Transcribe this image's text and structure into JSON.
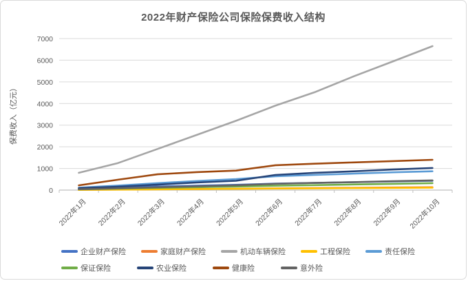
{
  "frame": {
    "title": "2022年财产保险公司保险保费收入结构"
  },
  "chart_data": {
    "type": "line",
    "title": "2022年财产保险公司保险保费收入结构",
    "xlabel": "",
    "ylabel": "保费收入（亿元）",
    "ylim": [
      0,
      7000
    ],
    "ytick_step": 1000,
    "yticks": [
      0,
      1000,
      2000,
      3000,
      4000,
      5000,
      6000,
      7000
    ],
    "grid": true,
    "legend_position": "bottom",
    "legend_rows": [
      [
        0,
        1,
        2,
        3,
        4
      ],
      [
        5,
        6,
        7,
        8
      ]
    ],
    "categories": [
      "2022年1月",
      "2022年2月",
      "2022年3月",
      "2022年4月",
      "2022年5月",
      "2022年6月",
      "2022年7月",
      "2022年8月",
      "2022年9月",
      "2022年10月"
    ],
    "series": [
      {
        "name": "企业财产保险",
        "color": "#4472C4",
        "values": [
          76,
          120,
          165,
          205,
          245,
          300,
          330,
          365,
          400,
          430
        ]
      },
      {
        "name": "家庭财产保险",
        "color": "#ED7D31",
        "values": [
          12,
          25,
          40,
          52,
          65,
          80,
          92,
          105,
          120,
          135
        ]
      },
      {
        "name": "机动车辆保险",
        "color": "#A5A5A5",
        "values": [
          800,
          1250,
          1900,
          2550,
          3200,
          3900,
          4520,
          5260,
          5950,
          6650
        ]
      },
      {
        "name": "工程保险",
        "color": "#FFC000",
        "values": [
          10,
          22,
          35,
          48,
          60,
          72,
          82,
          92,
          102,
          112
        ]
      },
      {
        "name": "责任保险",
        "color": "#5B9BD5",
        "values": [
          110,
          210,
          320,
          420,
          510,
          640,
          700,
          760,
          820,
          870
        ]
      },
      {
        "name": "保证保险",
        "color": "#70AD47",
        "values": [
          35,
          70,
          105,
          135,
          165,
          200,
          230,
          260,
          290,
          320
        ]
      },
      {
        "name": "农业保险",
        "color": "#264478",
        "values": [
          90,
          160,
          250,
          350,
          430,
          700,
          800,
          870,
          950,
          1020
        ]
      },
      {
        "name": "健康险",
        "color": "#9E480E",
        "values": [
          220,
          480,
          730,
          830,
          900,
          1150,
          1220,
          1280,
          1340,
          1400
        ]
      },
      {
        "name": "意外险",
        "color": "#636363",
        "values": [
          40,
          80,
          130,
          175,
          220,
          290,
          330,
          370,
          410,
          450
        ]
      }
    ],
    "axis_color": "#bfbfbf",
    "gridline_color": "#d9d9d9",
    "tick_label_color": "#595959"
  }
}
